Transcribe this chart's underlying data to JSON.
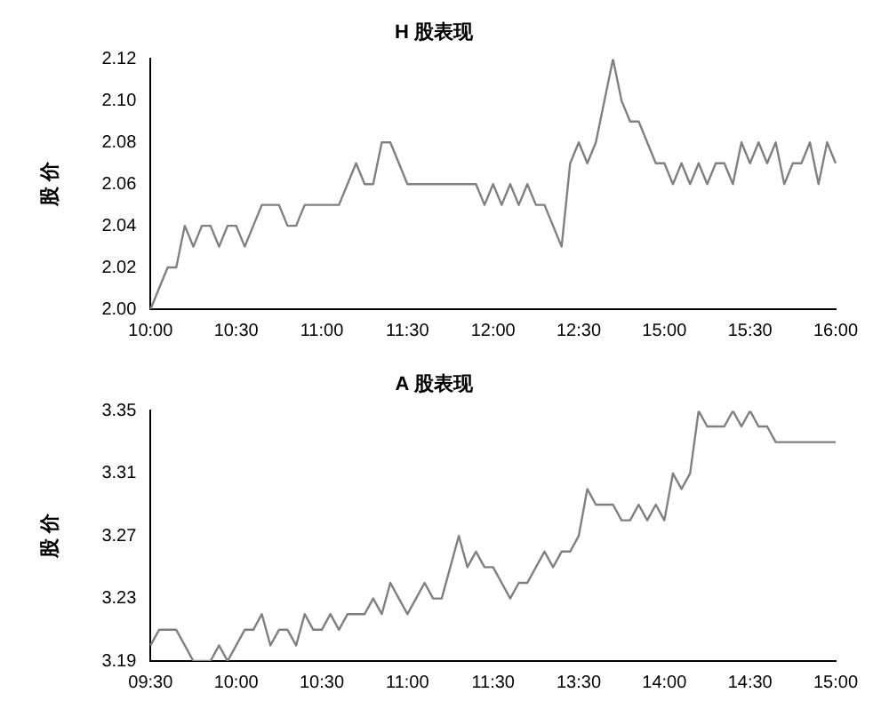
{
  "chart_data": [
    {
      "type": "line",
      "title": "H 股表现",
      "ylabel": "股 价",
      "categories": [
        "10:00",
        null,
        null,
        null,
        null,
        null,
        null,
        null,
        null,
        null,
        "10:30",
        null,
        null,
        null,
        null,
        null,
        null,
        null,
        null,
        null,
        "11:00",
        null,
        null,
        null,
        null,
        null,
        null,
        null,
        null,
        null,
        "11:30",
        null,
        null,
        null,
        null,
        null,
        null,
        null,
        null,
        null,
        "12:00",
        null,
        null,
        null,
        null,
        null,
        null,
        null,
        null,
        null,
        "12:30",
        null,
        null,
        null,
        null,
        null,
        null,
        null,
        null,
        null,
        "15:00",
        null,
        null,
        null,
        null,
        null,
        null,
        null,
        null,
        null,
        "15:30",
        null,
        null,
        null,
        null,
        null,
        null,
        null,
        null,
        null,
        "16:00"
      ],
      "series": [
        {
          "color": "#808080",
          "values": [
            2.0,
            2.01,
            2.02,
            2.02,
            2.04,
            2.03,
            2.04,
            2.04,
            2.03,
            2.04,
            2.04,
            2.03,
            2.04,
            2.05,
            2.05,
            2.05,
            2.04,
            2.04,
            2.05,
            2.05,
            2.05,
            2.05,
            2.05,
            2.06,
            2.07,
            2.06,
            2.06,
            2.08,
            2.08,
            2.07,
            2.06,
            2.06,
            2.06,
            2.06,
            2.06,
            2.06,
            2.06,
            2.06,
            2.06,
            2.05,
            2.06,
            2.05,
            2.06,
            2.05,
            2.06,
            2.05,
            2.05,
            2.04,
            2.03,
            2.07,
            2.08,
            2.07,
            2.08,
            2.1,
            2.12,
            2.1,
            2.09,
            2.09,
            2.08,
            2.07,
            2.07,
            2.06,
            2.07,
            2.06,
            2.07,
            2.06,
            2.07,
            2.07,
            2.06,
            2.08,
            2.07,
            2.08,
            2.07,
            2.08,
            2.06,
            2.07,
            2.07,
            2.08,
            2.06,
            2.08,
            2.07
          ]
        }
      ],
      "ylim": [
        2.0,
        2.12
      ],
      "yticks": [
        {
          "value": 2,
          "label": "2.00"
        },
        {
          "value": 2.02,
          "label": "2.02"
        },
        {
          "value": 2.04,
          "label": "2.04"
        },
        {
          "value": 2.06,
          "label": "2.06"
        },
        {
          "value": 2.08,
          "label": "2.08"
        },
        {
          "value": 2.1,
          "label": "2.10"
        },
        {
          "value": 2.12,
          "label": "2.12"
        }
      ],
      "grid": false,
      "legend": false,
      "marker": "none",
      "line_style": "solid"
    },
    {
      "type": "line",
      "title": "A 股表现",
      "ylabel": "股 价",
      "categories": [
        "09:30",
        null,
        null,
        null,
        null,
        null,
        null,
        null,
        null,
        null,
        "10:00",
        null,
        null,
        null,
        null,
        null,
        null,
        null,
        null,
        null,
        "10:30",
        null,
        null,
        null,
        null,
        null,
        null,
        null,
        null,
        null,
        "11:00",
        null,
        null,
        null,
        null,
        null,
        null,
        null,
        null,
        null,
        "11:30",
        null,
        null,
        null,
        null,
        null,
        null,
        null,
        null,
        null,
        "13:30",
        null,
        null,
        null,
        null,
        null,
        null,
        null,
        null,
        null,
        "14:00",
        null,
        null,
        null,
        null,
        null,
        null,
        null,
        null,
        null,
        "14:30",
        null,
        null,
        null,
        null,
        null,
        null,
        null,
        null,
        null,
        "15:00"
      ],
      "series": [
        {
          "color": "#808080",
          "values": [
            3.2,
            3.21,
            3.21,
            3.21,
            3.2,
            3.19,
            3.19,
            3.19,
            3.2,
            3.19,
            3.2,
            3.21,
            3.21,
            3.22,
            3.2,
            3.21,
            3.21,
            3.2,
            3.22,
            3.21,
            3.21,
            3.22,
            3.21,
            3.22,
            3.22,
            3.22,
            3.23,
            3.22,
            3.24,
            3.23,
            3.22,
            3.23,
            3.24,
            3.23,
            3.23,
            3.25,
            3.27,
            3.25,
            3.26,
            3.25,
            3.25,
            3.24,
            3.23,
            3.24,
            3.24,
            3.25,
            3.26,
            3.25,
            3.26,
            3.26,
            3.27,
            3.3,
            3.29,
            3.29,
            3.29,
            3.28,
            3.28,
            3.29,
            3.28,
            3.29,
            3.28,
            3.31,
            3.3,
            3.31,
            3.35,
            3.34,
            3.34,
            3.34,
            3.35,
            3.34,
            3.35,
            3.34,
            3.34,
            3.33,
            3.33,
            3.33,
            3.33,
            3.33,
            3.33,
            3.33,
            3.33
          ]
        }
      ],
      "ylim": [
        3.19,
        3.35
      ],
      "yticks": [
        3.19,
        3.23,
        3.27,
        3.31,
        3.35
      ],
      "grid": false,
      "legend": false,
      "marker": "none",
      "line_style": "solid"
    }
  ]
}
